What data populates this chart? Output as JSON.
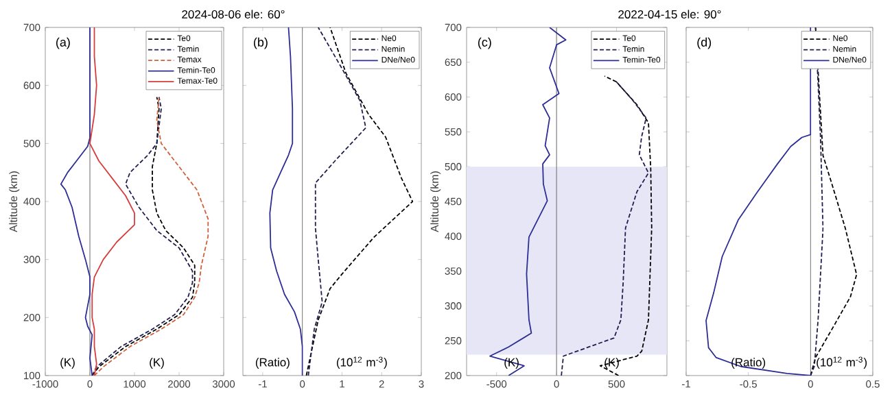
{
  "chart_data": [
    {
      "type": "line",
      "title": "2024-08-06 ele: 60°",
      "ylabel": "Altitude (km)",
      "annotations": [
        "(a)",
        "(K)",
        "(K)"
      ],
      "xlim": [
        -1000,
        3000
      ],
      "xticks": [
        -1000,
        0,
        1000,
        2000,
        3000
      ],
      "ylim": [
        100,
        700
      ],
      "yticks": [
        100,
        200,
        300,
        400,
        500,
        600,
        700
      ],
      "legend": "top right",
      "ref_lines": [
        {
          "axis": "x",
          "value": 0,
          "color": "#808080"
        }
      ],
      "series": [
        {
          "name": "Te0",
          "color": "#000000",
          "line_style": "dashed",
          "x": [
            50,
            200,
            800,
            1500,
            2000,
            2300,
            2350,
            2350,
            2100,
            1700,
            1500,
            1400,
            1400,
            1500,
            1550,
            1500
          ],
          "values": [
            100,
            115,
            150,
            180,
            205,
            235,
            260,
            290,
            320,
            350,
            380,
            420,
            460,
            500,
            560,
            580
          ]
        },
        {
          "name": "Temin",
          "color": "#1e1e50",
          "line_style": "dashed",
          "x": [
            50,
            150,
            700,
            1400,
            1900,
            2200,
            2300,
            2300,
            2000,
            1500,
            1100,
            800,
            900,
            1300,
            1500,
            1600,
            1550
          ],
          "values": [
            100,
            115,
            150,
            180,
            205,
            235,
            260,
            280,
            320,
            350,
            390,
            430,
            450,
            480,
            500,
            560,
            580
          ]
        },
        {
          "name": "Temax",
          "color": "#d0603c",
          "line_style": "dashed",
          "x": [
            100,
            300,
            900,
            1600,
            2100,
            2350,
            2450,
            2500,
            2650,
            2650,
            2400,
            2000,
            1600,
            1500,
            1550
          ],
          "values": [
            100,
            115,
            150,
            180,
            205,
            235,
            260,
            290,
            340,
            370,
            420,
            460,
            500,
            540,
            580
          ]
        },
        {
          "name": "Temin-Te0",
          "color": "#2d2d96",
          "line_style": "solid",
          "x": [
            50,
            0,
            50,
            -50,
            -100,
            -50,
            0,
            0,
            -100,
            -250,
            -400,
            -550,
            -650,
            -500,
            -300,
            -50,
            0,
            0
          ],
          "values": [
            100,
            130,
            170,
            185,
            200,
            220,
            240,
            270,
            300,
            340,
            390,
            420,
            430,
            450,
            470,
            495,
            510,
            700
          ]
        },
        {
          "name": "Temax-Te0",
          "color": "#d63c3c",
          "line_style": "solid",
          "x": [
            100,
            150,
            100,
            100,
            50,
            50,
            100,
            300,
            600,
            1000,
            1000,
            800,
            500,
            200,
            0,
            100,
            150,
            100,
            100
          ],
          "values": [
            100,
            120,
            150,
            180,
            200,
            240,
            270,
            300,
            330,
            360,
            380,
            410,
            440,
            470,
            500,
            550,
            600,
            650,
            700
          ]
        }
      ]
    },
    {
      "type": "line",
      "annotations": [
        "(b)",
        "(Ratio)",
        "(10$^{12}$ m$^{-3}$)"
      ],
      "xlim": [
        -1.5,
        3
      ],
      "xticks": [
        -1,
        0,
        1,
        2,
        3
      ],
      "ylim": [
        100,
        700
      ],
      "yticks": [
        100,
        200,
        300,
        400,
        500,
        600,
        700
      ],
      "tick_labels": "x",
      "legend": "top right",
      "ref_lines": [
        {
          "axis": "x",
          "value": 0,
          "color": "#808080"
        }
      ],
      "series": [
        {
          "name": "Ne0",
          "color": "#000000",
          "line_style": "dashed",
          "x": [
            0.1,
            0.4,
            0.7,
            1.0,
            1.8,
            2.78,
            2.5,
            2.1,
            1.67,
            1.1,
            0.7
          ],
          "values": [
            100,
            196,
            250,
            275,
            338,
            400,
            440,
            511,
            550,
            621,
            700
          ]
        },
        {
          "name": "Nemin",
          "color": "#1e1e50",
          "line_style": "dashed",
          "x": [
            0.15,
            0.3,
            0.5,
            0.4,
            0.33,
            0.33,
            0.85,
            1.6,
            1.45,
            1.0,
            0.4
          ],
          "values": [
            100,
            180,
            227,
            300,
            354,
            432,
            472,
            527,
            574,
            629,
            700
          ]
        },
        {
          "name": "DNe/Ne0",
          "color": "#2d2d96",
          "line_style": "solid",
          "x": [
            0,
            0,
            -0.05,
            -0.2,
            -0.45,
            -0.65,
            -0.8,
            -0.82,
            -0.75,
            -0.55,
            -0.35,
            -0.25,
            -0.25,
            -0.3,
            -0.35
          ],
          "values": [
            100,
            150,
            180,
            210,
            240,
            280,
            320,
            380,
            420,
            450,
            480,
            500,
            560,
            650,
            700
          ]
        }
      ]
    },
    {
      "type": "line",
      "title": "2022-04-15 ele: 90°",
      "ylabel": "Altitude (km)",
      "annotations": [
        "(c)",
        "(K)",
        "(K)"
      ],
      "xlim": [
        -750,
        920
      ],
      "xticks": [
        -500,
        0,
        500
      ],
      "ylim": [
        200,
        700
      ],
      "yticks": [
        200,
        250,
        300,
        350,
        400,
        450,
        500,
        550,
        600,
        650,
        700
      ],
      "legend": "top right",
      "ref_lines": [
        {
          "axis": "x",
          "value": 0,
          "color": "#808080"
        }
      ],
      "bands": [
        {
          "axis": "y",
          "from": 230,
          "to": 500,
          "color": "#e6e6f7"
        }
      ],
      "series": [
        {
          "name": "Te0",
          "color": "#000000",
          "line_style": "dashed",
          "x": [
            517,
            364,
            670,
            710,
            766,
            793,
            785,
            766,
            670,
            498,
            400
          ],
          "values": [
            200,
            214,
            228,
            235,
            280,
            412,
            497,
            563,
            589,
            622,
            630
          ]
        },
        {
          "name": "Temin",
          "color": "#1e1e50",
          "line_style": "dashed",
          "x": [
            40,
            57,
            479,
            536,
            555,
            575,
            670,
            766,
            690,
            709,
            747,
            632,
            498
          ],
          "values": [
            200,
            228,
            254,
            280,
            333,
            412,
            464,
            491,
            517,
            543,
            570,
            596,
            622
          ]
        },
        {
          "name": "Temin-Te0",
          "color": "#2d2d96",
          "line_style": "solid",
          "x": [
            -400,
            -270,
            -555,
            -400,
            -210,
            -230,
            -250,
            -230,
            -77,
            -110,
            -115,
            -58,
            -95,
            -58,
            -115,
            20,
            -58,
            0,
            77,
            -58
          ],
          "values": [
            200,
            214,
            228,
            241,
            261,
            280,
            346,
            399,
            451,
            475,
            504,
            517,
            530,
            570,
            589,
            605,
            642,
            675,
            682,
            700
          ]
        }
      ]
    },
    {
      "type": "line",
      "annotations": [
        "(d)",
        "(Ratio)",
        "(10$^{12}$ m$^{-3}$)"
      ],
      "xlim": [
        -1,
        0.5
      ],
      "xticks": [
        -1,
        -0.5,
        0,
        0.5
      ],
      "ylim": [
        200,
        700
      ],
      "yticks": [
        200,
        250,
        300,
        350,
        400,
        450,
        500,
        550,
        600,
        650,
        700
      ],
      "tick_labels": "x",
      "legend": "top right",
      "ref_lines": [
        {
          "axis": "x",
          "value": 0,
          "color": "#808080"
        }
      ],
      "series": [
        {
          "name": "Ne0",
          "color": "#000000",
          "line_style": "dashed",
          "x": [
            0,
            0.04,
            0.17,
            0.32,
            0.37,
            0.28,
            0.17,
            0.1,
            0.04
          ],
          "values": [
            200,
            226,
            266,
            313,
            345,
            411,
            476,
            516,
            700
          ]
        },
        {
          "name": "Nemin",
          "color": "#1e1e50",
          "line_style": "dashed",
          "x": [
            0,
            0.03,
            0.06,
            0.08,
            0.1,
            0.08,
            0.04
          ],
          "values": [
            200,
            213,
            279,
            345,
            411,
            542,
            700
          ]
        },
        {
          "name": "DNe/Ne0",
          "color": "#2d2d96",
          "line_style": "solid",
          "x": [
            0,
            -0.19,
            -0.56,
            -0.76,
            -0.82,
            -0.84,
            -0.78,
            -0.71,
            -0.58,
            -0.43,
            -0.27,
            -0.16,
            -0.07,
            0,
            0
          ],
          "values": [
            200,
            203,
            213,
            226,
            240,
            279,
            318,
            371,
            424,
            463,
            503,
            529,
            542,
            546,
            700
          ]
        }
      ]
    }
  ]
}
